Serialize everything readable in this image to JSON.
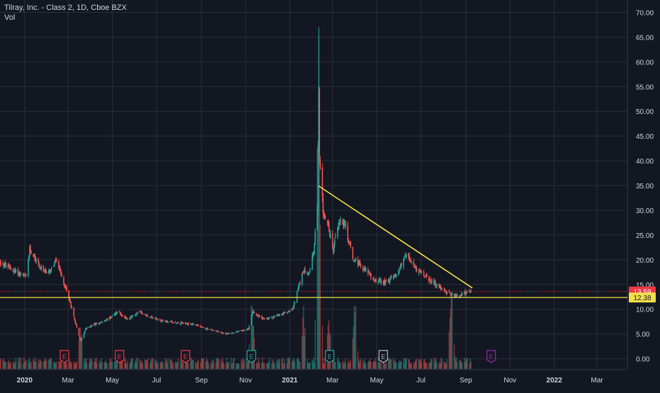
{
  "legend": {
    "symbol_line": "Tilray, Inc. - Class 2, 1D, Cboe BZX",
    "volume_label": "Vol"
  },
  "chart_data": {
    "type": "candlestick",
    "y_axis": {
      "ticks": [
        "70.00",
        "65.00",
        "60.00",
        "55.00",
        "50.00",
        "45.00",
        "40.00",
        "35.00",
        "30.00",
        "25.00",
        "20.00",
        "15.00",
        "10.00",
        "5.00",
        "0.00"
      ],
      "tick_values": [
        70,
        65,
        60,
        55,
        50,
        45,
        40,
        35,
        30,
        25,
        20,
        15,
        10,
        5,
        0
      ],
      "range": [
        -2.2,
        72.5
      ]
    },
    "x_axis": {
      "ticks": [
        "2020",
        "Mar",
        "May",
        "Jul",
        "Sep",
        "Nov",
        "2021",
        "Mar",
        "May",
        "Jul",
        "Sep",
        "Nov",
        "2022",
        "Mar"
      ],
      "range": [
        "2019-11-28",
        "2022-04-12"
      ]
    },
    "price_series": [
      {
        "date": "2019-11-28",
        "value": 19.5
      },
      {
        "date": "2019-12-15",
        "value": 18.0
      },
      {
        "date": "2020-01-03",
        "value": 16.5
      },
      {
        "date": "2020-01-08",
        "value": 22.0
      },
      {
        "date": "2020-01-13",
        "value": 21.0
      },
      {
        "date": "2020-01-22",
        "value": 18.5
      },
      {
        "date": "2020-02-02",
        "value": 17.0
      },
      {
        "date": "2020-02-14",
        "value": 20.0
      },
      {
        "date": "2020-02-22",
        "value": 16.0
      },
      {
        "date": "2020-03-01",
        "value": 13.0
      },
      {
        "date": "2020-03-08",
        "value": 9.0
      },
      {
        "date": "2020-03-18",
        "value": 3.5
      },
      {
        "date": "2020-03-25",
        "value": 6.0
      },
      {
        "date": "2020-04-06",
        "value": 7.0
      },
      {
        "date": "2020-04-20",
        "value": 7.5
      },
      {
        "date": "2020-05-08",
        "value": 9.5
      },
      {
        "date": "2020-05-22",
        "value": 8.0
      },
      {
        "date": "2020-06-08",
        "value": 9.5
      },
      {
        "date": "2020-06-22",
        "value": 8.5
      },
      {
        "date": "2020-07-15",
        "value": 7.5
      },
      {
        "date": "2020-08-20",
        "value": 7.0
      },
      {
        "date": "2020-09-10",
        "value": 6.0
      },
      {
        "date": "2020-10-05",
        "value": 5.0
      },
      {
        "date": "2020-10-20",
        "value": 5.5
      },
      {
        "date": "2020-11-05",
        "value": 6.0
      },
      {
        "date": "2020-11-10",
        "value": 9.5
      },
      {
        "date": "2020-11-25",
        "value": 8.0
      },
      {
        "date": "2020-12-10",
        "value": 8.5
      },
      {
        "date": "2020-12-22",
        "value": 9.0
      },
      {
        "date": "2021-01-05",
        "value": 10.0
      },
      {
        "date": "2021-01-12",
        "value": 14.0
      },
      {
        "date": "2021-01-20",
        "value": 18.0
      },
      {
        "date": "2021-01-27",
        "value": 17.0
      },
      {
        "date": "2021-02-03",
        "value": 22.0
      },
      {
        "date": "2021-02-08",
        "value": 30.0
      },
      {
        "date": "2021-02-10",
        "value": 55.0
      },
      {
        "date": "2021-02-11",
        "value": 40.0
      },
      {
        "date": "2021-02-16",
        "value": 30.0
      },
      {
        "date": "2021-02-23",
        "value": 27.0
      },
      {
        "date": "2021-03-02",
        "value": 22.0
      },
      {
        "date": "2021-03-10",
        "value": 28.0
      },
      {
        "date": "2021-03-18",
        "value": 27.0
      },
      {
        "date": "2021-03-30",
        "value": 20.0
      },
      {
        "date": "2021-04-14",
        "value": 18.0
      },
      {
        "date": "2021-04-28",
        "value": 16.0
      },
      {
        "date": "2021-05-13",
        "value": 15.5
      },
      {
        "date": "2021-05-28",
        "value": 17.0
      },
      {
        "date": "2021-06-10",
        "value": 21.0
      },
      {
        "date": "2021-06-25",
        "value": 18.0
      },
      {
        "date": "2021-07-08",
        "value": 16.5
      },
      {
        "date": "2021-07-22",
        "value": 15.0
      },
      {
        "date": "2021-08-05",
        "value": 13.5
      },
      {
        "date": "2021-08-20",
        "value": 12.5
      },
      {
        "date": "2021-09-02",
        "value": 13.5
      },
      {
        "date": "2021-09-08",
        "value": 13.59
      }
    ],
    "high_spikes": [
      {
        "date": "2021-02-10",
        "high": 67.0
      },
      {
        "date": "2021-02-11",
        "high": 55.0
      }
    ],
    "volume_spikes": [
      {
        "date": "2021-02-10",
        "relative": 1.0
      },
      {
        "date": "2021-01-20",
        "relative": 0.2
      },
      {
        "date": "2021-02-24",
        "relative": 0.2
      },
      {
        "date": "2020-03-18",
        "relative": 0.18
      },
      {
        "date": "2020-11-10",
        "relative": 0.25
      },
      {
        "date": "2021-04-01",
        "relative": 0.25
      },
      {
        "date": "2021-08-12",
        "relative": 0.35
      }
    ],
    "trendline": {
      "start": {
        "date": "2021-02-10",
        "value": 34.9
      },
      "end": {
        "date": "2021-09-10",
        "value": 14.3
      },
      "color": "#f0e04a"
    },
    "support_line": {
      "value": 12.38,
      "color": "#f0e04a"
    },
    "price_labels": [
      {
        "text": "13.59",
        "value": 13.59,
        "color": "#f23645",
        "text_color": "#ffffff"
      },
      {
        "text": "12.38",
        "value": 12.38,
        "color": "#f0e04a",
        "text_color": "#131722"
      }
    ],
    "earnings_markers": [
      {
        "date": "2020-02-25",
        "label": "E",
        "color": "#f23645"
      },
      {
        "date": "2020-05-11",
        "label": "E",
        "color": "#f23645"
      },
      {
        "date": "2020-08-10",
        "label": "E",
        "color": "#f23645"
      },
      {
        "date": "2020-11-09",
        "label": "E",
        "color": "#26a69a"
      },
      {
        "date": "2021-02-25",
        "label": "E",
        "color": "#26a69a"
      },
      {
        "date": "2021-05-10",
        "label": "E",
        "color": "#b2b5be"
      },
      {
        "date": "2021-10-06",
        "label": "E",
        "color": "#9c27b0"
      }
    ],
    "colors": {
      "background": "#131722",
      "grid": "#2a2e39",
      "up": "#26a69a",
      "down": "#ef5350",
      "axis_text": "#d1d4dc",
      "trend": "#f0e04a"
    }
  }
}
